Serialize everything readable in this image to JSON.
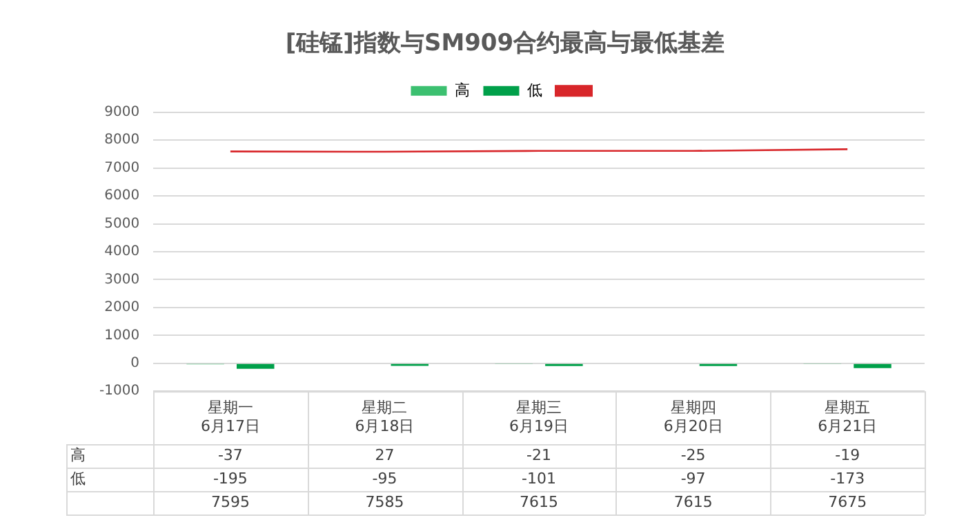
{
  "chart_data": {
    "type": "bar",
    "title": "[硅锰]指数与SM909合约最高与最低基差",
    "categories": [
      "星期一\n6月17日",
      "星期二\n6月18日",
      "星期三\n6月19日",
      "星期四\n6月20日",
      "星期五\n6月21日"
    ],
    "series": [
      {
        "name": "高",
        "color": "#3cc070",
        "values": [
          -37,
          27,
          -21,
          -25,
          -19
        ]
      },
      {
        "name": "低",
        "color": "#00a04a",
        "values": [
          -195,
          -95,
          -101,
          -97,
          -173
        ]
      },
      {
        "type": "line",
        "color": "#d8262a",
        "values": [
          7595,
          7585,
          7615,
          7615,
          7675
        ]
      }
    ],
    "ylim": [
      -1000,
      9000
    ],
    "yticks": [
      -1000,
      0,
      1000,
      2000,
      3000,
      4000,
      5000,
      6000,
      7000,
      8000,
      9000
    ],
    "grid": "y",
    "legend": "top",
    "data_labels": true,
    "marker": "none"
  }
}
